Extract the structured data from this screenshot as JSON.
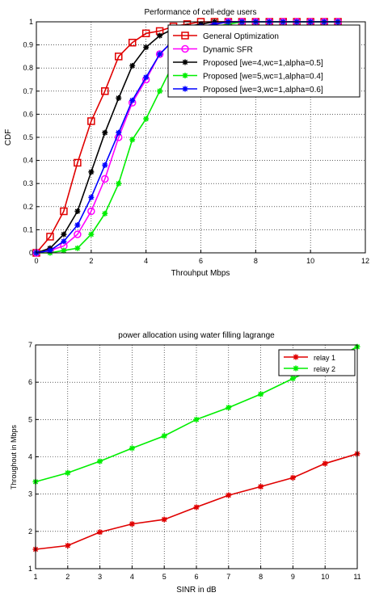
{
  "chart_data": [
    {
      "type": "line",
      "title": "Performance of cell-edge users",
      "xlabel": "Throuhput Mbps",
      "ylabel": "CDF",
      "xlim": [
        0,
        12
      ],
      "ylim": [
        0,
        1
      ],
      "xticks": [
        0,
        2,
        4,
        6,
        8,
        10,
        12
      ],
      "yticks": [
        0,
        0.1,
        0.2,
        0.3,
        0.4,
        0.5,
        0.6,
        0.7,
        0.8,
        0.9,
        1
      ],
      "grid": true,
      "legend_position": "top-right",
      "series": [
        {
          "name": "General Optimization",
          "color": "#e00000",
          "marker": "square",
          "x": [
            0,
            0.5,
            1,
            1.5,
            2,
            2.5,
            3,
            3.5,
            4,
            4.5,
            5,
            5.5,
            6,
            6.5,
            7,
            7.5,
            8,
            8.5,
            9,
            9.5,
            10,
            10.5,
            11
          ],
          "y": [
            0,
            0.07,
            0.18,
            0.39,
            0.57,
            0.7,
            0.85,
            0.91,
            0.95,
            0.96,
            0.98,
            0.99,
            1,
            1,
            1,
            1,
            1,
            1,
            1,
            1,
            1,
            1,
            1
          ]
        },
        {
          "name": "Dynamic SFR",
          "color": "#ff00ff",
          "marker": "circle",
          "x": [
            0,
            0.5,
            1,
            1.5,
            2,
            2.5,
            3,
            3.5,
            4,
            4.5,
            5,
            5.5,
            6,
            6.5,
            7,
            7.5,
            8,
            8.5,
            9,
            9.5,
            10,
            10.5,
            11
          ],
          "y": [
            0,
            0.01,
            0.03,
            0.08,
            0.18,
            0.32,
            0.5,
            0.65,
            0.75,
            0.86,
            0.92,
            0.96,
            0.98,
            0.99,
            1,
            1,
            1,
            1,
            1,
            1,
            1,
            1,
            1
          ]
        },
        {
          "name": "Proposed [we=4,wc=1,alpha=0.5]",
          "color": "#000000",
          "marker": "star",
          "x": [
            0,
            0.5,
            1,
            1.5,
            2,
            2.5,
            3,
            3.5,
            4,
            4.5,
            5,
            5.5,
            6,
            6.5,
            7,
            7.5,
            8,
            8.5,
            9,
            9.5,
            10,
            10.5,
            11
          ],
          "y": [
            0,
            0.02,
            0.08,
            0.18,
            0.35,
            0.52,
            0.67,
            0.81,
            0.89,
            0.94,
            0.97,
            0.98,
            0.99,
            1,
            1,
            1,
            1,
            1,
            1,
            1,
            1,
            1,
            1
          ]
        },
        {
          "name": "Proposed [we=5,wc=1,alpha=0.4]",
          "color": "#00ee00",
          "marker": "star",
          "x": [
            0,
            0.5,
            1,
            1.5,
            2,
            2.5,
            3,
            3.5,
            4,
            4.5,
            5,
            5.5,
            6,
            6.5,
            7,
            7.5,
            8,
            8.5,
            9,
            9.5,
            10,
            10.5,
            11
          ],
          "y": [
            0,
            0,
            0.01,
            0.02,
            0.08,
            0.17,
            0.3,
            0.49,
            0.58,
            0.7,
            0.82,
            0.9,
            0.95,
            0.98,
            0.99,
            1,
            1,
            1,
            1,
            1,
            1,
            1,
            1
          ]
        },
        {
          "name": "Proposed [we=3,wc=1,alpha=0.6]",
          "color": "#0000ff",
          "marker": "star",
          "x": [
            0,
            0.5,
            1,
            1.5,
            2,
            2.5,
            3,
            3.5,
            4,
            4.5,
            5,
            5.5,
            6,
            6.5,
            7,
            7.5,
            8,
            8.5,
            9,
            9.5,
            10,
            10.5,
            11
          ],
          "y": [
            0,
            0.01,
            0.05,
            0.12,
            0.24,
            0.38,
            0.52,
            0.66,
            0.76,
            0.86,
            0.92,
            0.96,
            0.98,
            0.99,
            1,
            1,
            1,
            1,
            1,
            1,
            1,
            1,
            1
          ]
        }
      ]
    },
    {
      "type": "line",
      "title": "power allocation using water filling lagrange",
      "xlabel": "SINR in dB",
      "ylabel": "Throughout in Mbps",
      "xlim": [
        1,
        11
      ],
      "ylim": [
        1,
        7
      ],
      "xticks": [
        1,
        2,
        3,
        4,
        5,
        6,
        7,
        8,
        9,
        10,
        11
      ],
      "yticks": [
        1,
        2,
        3,
        4,
        5,
        6,
        7
      ],
      "grid": true,
      "legend_position": "top-right",
      "series": [
        {
          "name": "relay 1",
          "color": "#e00000",
          "marker": "star",
          "x": [
            1,
            2,
            3,
            4,
            5,
            6,
            7,
            8,
            9,
            10,
            11
          ],
          "y": [
            1.52,
            1.62,
            1.98,
            2.2,
            2.32,
            2.65,
            2.97,
            3.2,
            3.44,
            3.82,
            4.08
          ]
        },
        {
          "name": "relay 2",
          "color": "#00ee00",
          "marker": "star",
          "x": [
            1,
            2,
            3,
            4,
            5,
            6,
            7,
            8,
            9,
            10,
            11
          ],
          "y": [
            3.33,
            3.57,
            3.88,
            4.23,
            4.56,
            5.0,
            5.32,
            5.68,
            6.1,
            6.5,
            6.95
          ]
        }
      ]
    }
  ]
}
